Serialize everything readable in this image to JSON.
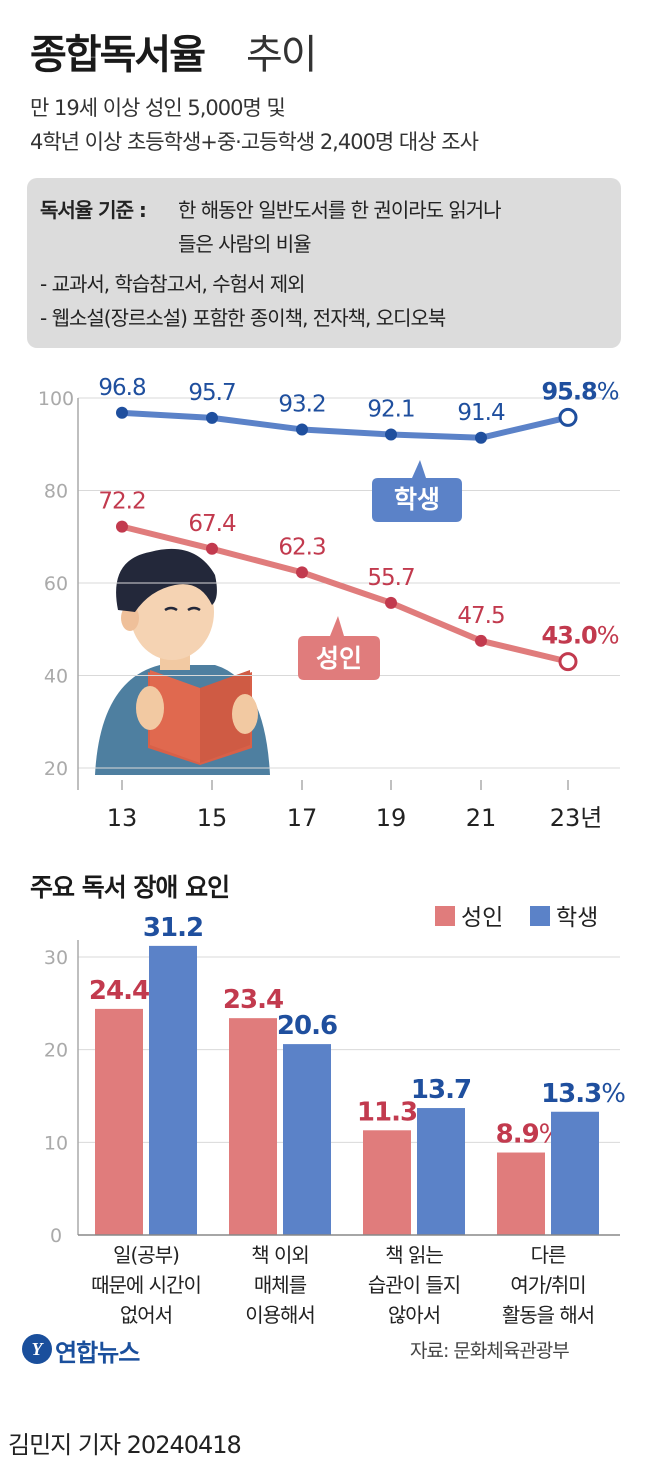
{
  "header": {
    "title_main": "종합독서율",
    "title_sub": "추이",
    "subtitle_1": "만 19세 이상 성인 5,000명 및",
    "subtitle_2": "4학년 이상 초등학생+중·고등학생 2,400명 대상 조사"
  },
  "note": {
    "label": "독서율 기준 :",
    "definition_1": "한 해동안 일반도서를 한 권이라도 읽거나",
    "definition_2": "들은 사람의 비율",
    "exclusion_1": "- 교과서, 학습참고서, 수험서 제외",
    "exclusion_2": "- 웹소설(장르소설) 포함한 종이책, 전자책, 오디오북"
  },
  "colors": {
    "student": "#5b82c8",
    "student_dark": "#1f4f9e",
    "adult": "#e07c7c",
    "adult_dark": "#c23a4e",
    "axis_gray": "#aaaaaa"
  },
  "chart_data": [
    {
      "type": "line",
      "categories": [
        "13",
        "15",
        "17",
        "19",
        "21",
        "23년"
      ],
      "yticks": [
        20,
        40,
        60,
        80,
        100
      ],
      "ylim": [
        20,
        100
      ],
      "unit_label": "%",
      "series": [
        {
          "name": "학생",
          "values": [
            96.8,
            95.7,
            93.2,
            92.1,
            91.4,
            95.8
          ],
          "labels": [
            "96.8",
            "95.7",
            "93.2",
            "92.1",
            "91.4",
            "95.8"
          ]
        },
        {
          "name": "성인",
          "values": [
            72.2,
            67.4,
            62.3,
            55.7,
            47.5,
            43.0
          ],
          "labels": [
            "72.2",
            "67.4",
            "62.3",
            "55.7",
            "47.5",
            "43.0"
          ]
        }
      ]
    },
    {
      "type": "bar",
      "title": "주요 독서 장애 요인",
      "categories": [
        [
          "일(공부)",
          "때문에 시간이",
          "없어서"
        ],
        [
          "책 이외",
          "매체를",
          "이용해서"
        ],
        [
          "책 읽는",
          "습관이 들지",
          "않아서"
        ],
        [
          "다른",
          "여가/취미",
          "활동을 해서"
        ]
      ],
      "yticks": [
        0,
        10,
        20,
        30
      ],
      "ylim": [
        0,
        34
      ],
      "unit_label": "%",
      "legend": [
        "성인",
        "학생"
      ],
      "legend_position": "top-right",
      "series": [
        {
          "name": "성인",
          "values": [
            24.4,
            23.4,
            11.3,
            8.9
          ],
          "labels": [
            "24.4",
            "23.4",
            "11.3",
            "8.9"
          ]
        },
        {
          "name": "학생",
          "values": [
            31.2,
            20.6,
            13.7,
            13.3
          ],
          "labels": [
            "31.2",
            "20.6",
            "13.7",
            "13.3"
          ]
        }
      ]
    }
  ],
  "footer": {
    "logo_text": "연합뉴스",
    "logo_mark": "Y",
    "source": "자료: 문화체육관광부",
    "byline": "김민지 기자  20240418"
  },
  "illustration": {
    "name": "reading-person-illustration"
  }
}
